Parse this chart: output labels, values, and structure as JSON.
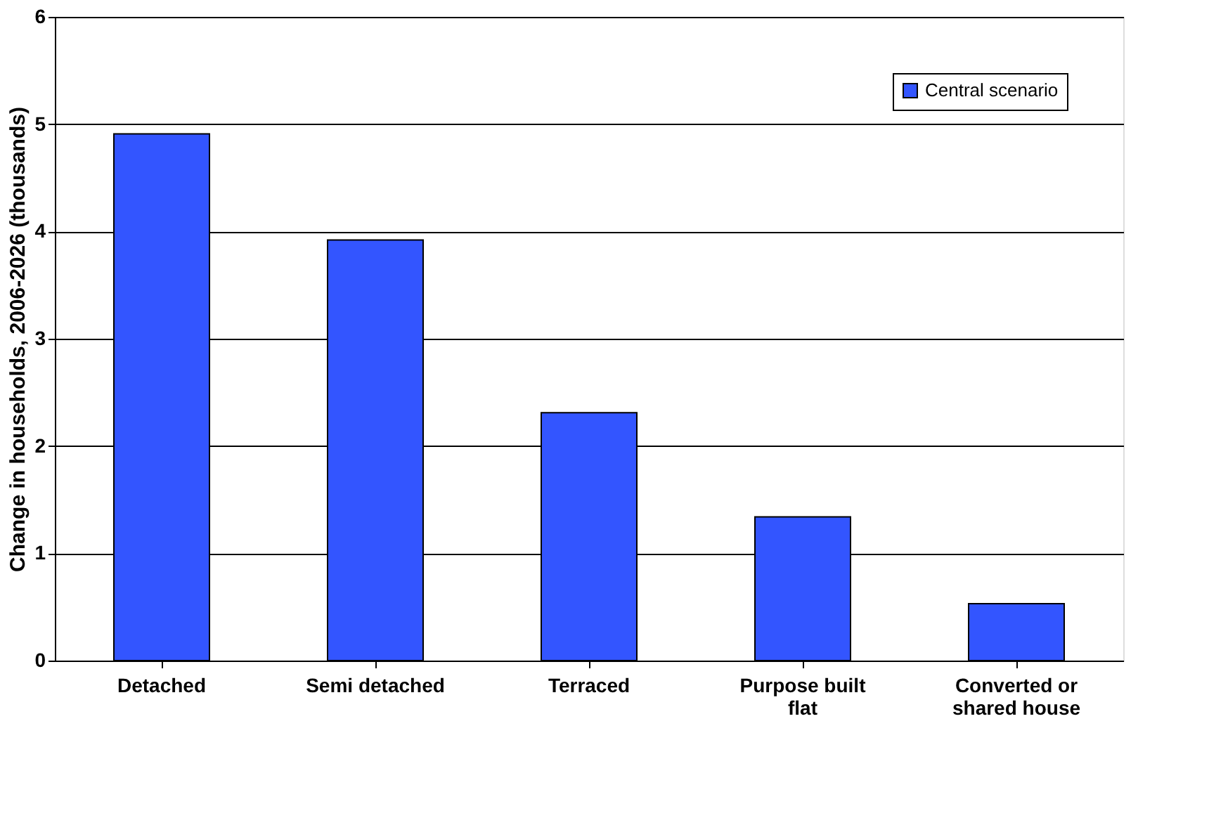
{
  "chart_data": {
    "type": "bar",
    "ylabel": "Change in households, 2006-2026 (thousands)",
    "categories": [
      "Detached",
      "Semi detached",
      "Terraced",
      "Purpose built flat",
      "Converted or shared house"
    ],
    "series": [
      {
        "name": "Central scenario",
        "color": "#3355ff",
        "values": [
          4.91,
          3.92,
          2.31,
          1.34,
          0.53
        ]
      }
    ],
    "ylim": [
      0,
      6
    ],
    "yticks": [
      0,
      1,
      2,
      3,
      4,
      5,
      6
    ],
    "grid": "y",
    "legend": "top right"
  }
}
